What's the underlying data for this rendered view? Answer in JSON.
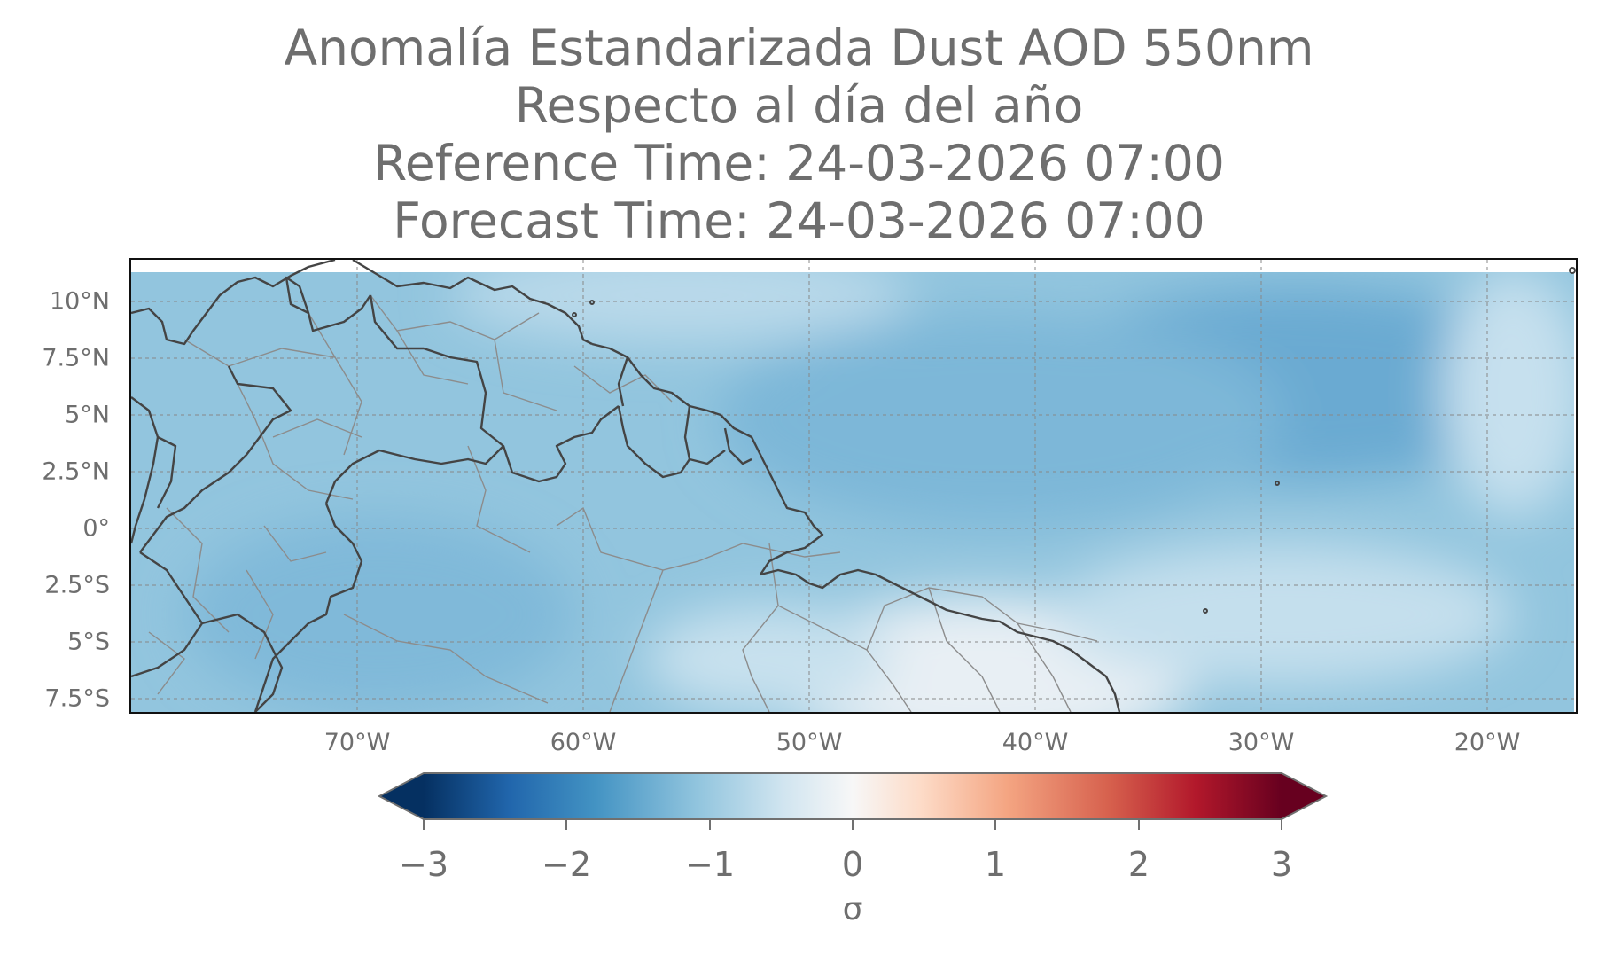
{
  "title": {
    "line1": "Anomalía Estandarizada Dust AOD 550nm",
    "line2": "Respecto al día del año",
    "line3": "Reference Time: 24-03-2026 07:00",
    "line4": "Forecast Time: 24-03-2026 07:00"
  },
  "map": {
    "lat_labels": [
      "10°N",
      "7.5°N",
      "5°N",
      "2.5°N",
      "0°",
      "2.5°S",
      "5°S",
      "7.5°S"
    ],
    "lon_labels": [
      "70°W",
      "60°W",
      "50°W",
      "40°W",
      "30°W",
      "20°W"
    ],
    "gridlines": "dashed gray",
    "lat_range": [
      -8,
      12
    ],
    "lon_range": [
      -80,
      -16
    ],
    "field_color_general": "#8ec2dd",
    "field_color_low_anomaly": "#6aaad2",
    "field_color_near_zero": "#e8eff4"
  },
  "colorbar": {
    "ticks": [
      "−3",
      "−2",
      "−1",
      "0",
      "1",
      "2",
      "3"
    ],
    "label": "σ",
    "range": [
      -3,
      3
    ],
    "extend": "both",
    "colormap": "RdBu_r",
    "colors": [
      "#053061",
      "#2166ac",
      "#4393c3",
      "#92c5de",
      "#d1e5f0",
      "#f7f7f7",
      "#fddbc7",
      "#f4a582",
      "#d6604d",
      "#b2182b",
      "#67001f"
    ]
  }
}
